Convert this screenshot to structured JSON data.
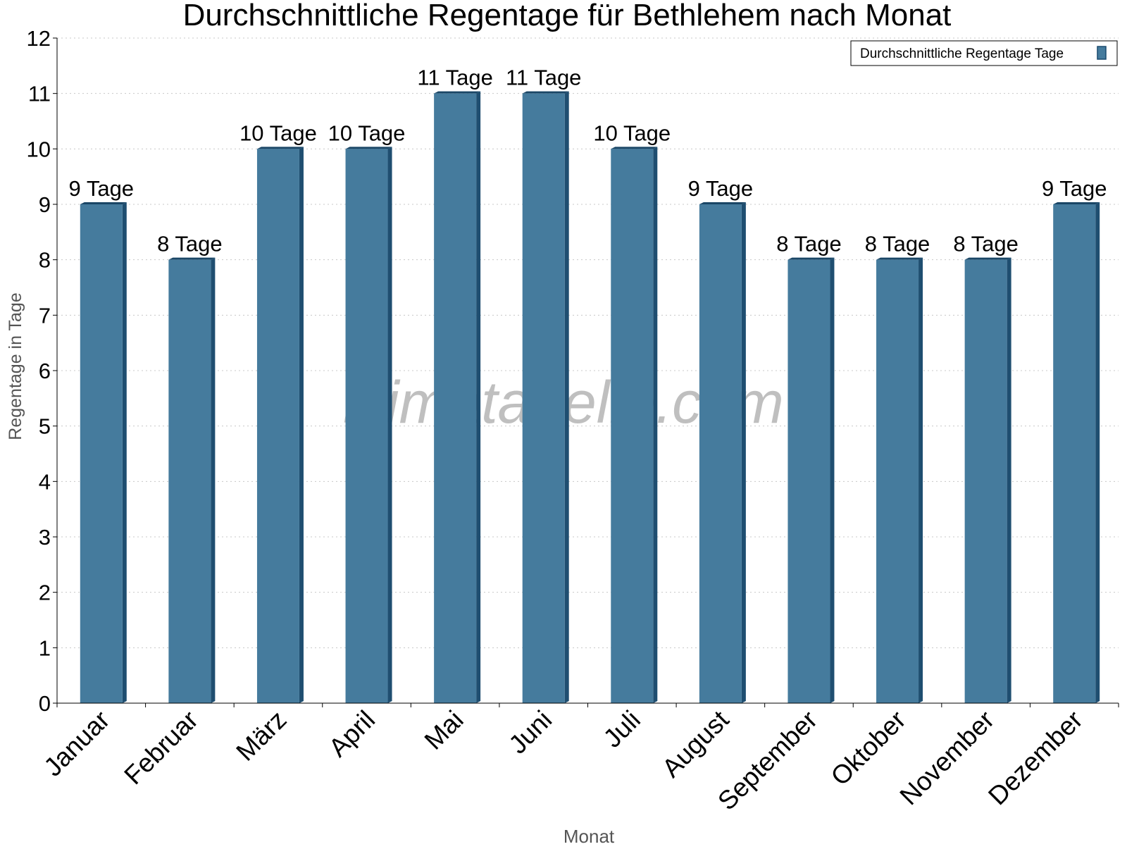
{
  "chart_data": {
    "type": "bar",
    "title": "Durchschnittliche Regentage für Bethlehem nach Monat",
    "xlabel": "Monat",
    "ylabel": "Regentage in Tage",
    "ylim": [
      0,
      12
    ],
    "yticks": [
      0,
      1,
      2,
      3,
      4,
      5,
      6,
      7,
      8,
      9,
      10,
      11,
      12
    ],
    "grid": true,
    "legend_position": "top-right",
    "categories": [
      "Januar",
      "Februar",
      "März",
      "April",
      "Mai",
      "Juni",
      "Juli",
      "August",
      "September",
      "Oktober",
      "November",
      "Dezember"
    ],
    "series": [
      {
        "name": "Durchschnittliche Regentage Tage",
        "color": "#457b9d",
        "values": [
          9,
          8,
          10,
          10,
          11,
          11,
          10,
          9,
          8,
          8,
          8,
          9
        ],
        "data_labels": [
          "9 Tage",
          "8 Tage",
          "10 Tage",
          "10 Tage",
          "11 Tage",
          "11 Tage",
          "10 Tage",
          "9 Tage",
          "8 Tage",
          "8 Tage",
          "8 Tage",
          "9 Tage"
        ]
      }
    ],
    "watermark": "klimatabelle.com"
  }
}
